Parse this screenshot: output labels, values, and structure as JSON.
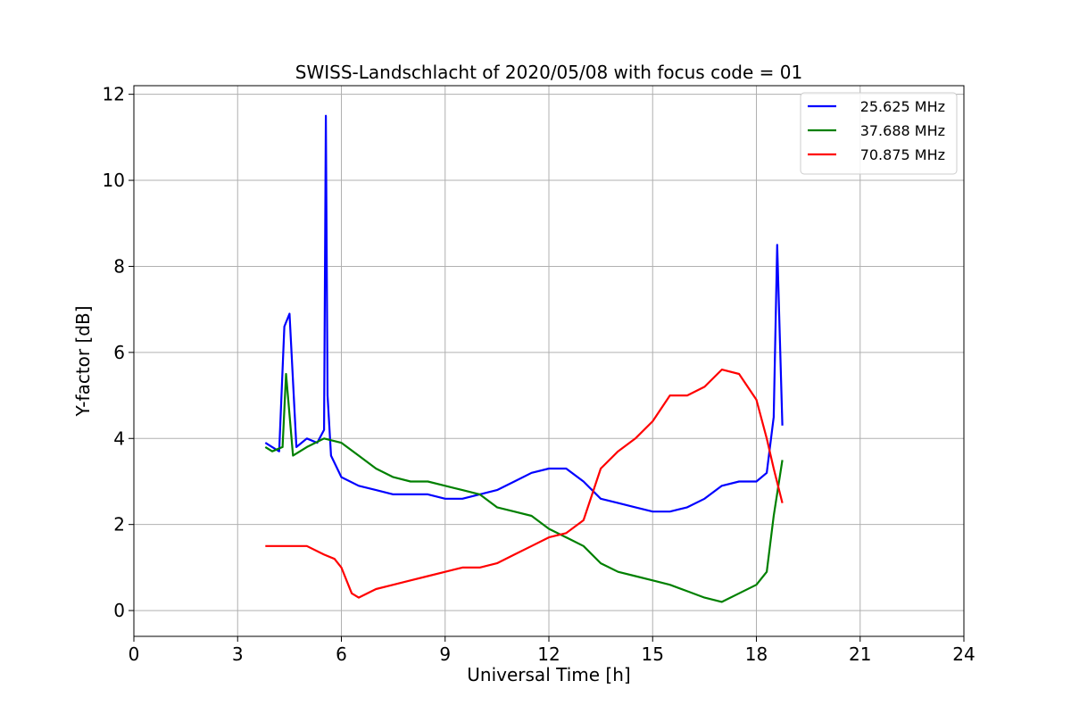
{
  "chart_data": {
    "type": "line",
    "title": "SWISS-Landschlacht of 2020/05/08 with focus code = 01",
    "xlabel": "Universal Time [h]",
    "ylabel": "Y-factor [dB]",
    "xlim": [
      0,
      24
    ],
    "ylim": [
      -0.6,
      12.2
    ],
    "xticks": [
      0,
      3,
      6,
      9,
      12,
      15,
      18,
      21,
      24
    ],
    "yticks": [
      0,
      2,
      4,
      6,
      8,
      10,
      12
    ],
    "grid": true,
    "legend_position": "top-right",
    "series": [
      {
        "name": "25.625 MHz",
        "color": "#0000ff",
        "x": [
          3.8,
          4.0,
          4.2,
          4.35,
          4.5,
          4.7,
          5.0,
          5.3,
          5.5,
          5.55,
          5.6,
          5.7,
          6.0,
          6.5,
          7.0,
          7.5,
          8.0,
          8.5,
          9.0,
          9.5,
          10.0,
          10.5,
          11.0,
          11.5,
          12.0,
          12.5,
          13.0,
          13.5,
          14.0,
          14.5,
          15.0,
          15.5,
          16.0,
          16.5,
          17.0,
          17.5,
          18.0,
          18.3,
          18.5,
          18.6,
          18.75
        ],
        "y": [
          3.9,
          3.8,
          3.7,
          6.6,
          6.9,
          3.8,
          4.0,
          3.9,
          4.2,
          11.5,
          5.0,
          3.6,
          3.1,
          2.9,
          2.8,
          2.7,
          2.7,
          2.7,
          2.6,
          2.6,
          2.7,
          2.8,
          3.0,
          3.2,
          3.3,
          3.3,
          3.0,
          2.6,
          2.5,
          2.4,
          2.3,
          2.3,
          2.4,
          2.6,
          2.9,
          3.0,
          3.0,
          3.2,
          4.5,
          8.5,
          4.3
        ]
      },
      {
        "name": "37.688 MHz",
        "color": "#008000",
        "x": [
          3.8,
          4.0,
          4.3,
          4.4,
          4.6,
          5.0,
          5.5,
          6.0,
          6.5,
          7.0,
          7.5,
          8.0,
          8.5,
          9.0,
          9.5,
          10.0,
          10.5,
          11.0,
          11.5,
          12.0,
          12.5,
          13.0,
          13.5,
          14.0,
          14.5,
          15.0,
          15.5,
          16.0,
          16.5,
          17.0,
          17.5,
          18.0,
          18.3,
          18.5,
          18.75
        ],
        "y": [
          3.8,
          3.7,
          3.8,
          5.5,
          3.6,
          3.8,
          4.0,
          3.9,
          3.6,
          3.3,
          3.1,
          3.0,
          3.0,
          2.9,
          2.8,
          2.7,
          2.4,
          2.3,
          2.2,
          1.9,
          1.7,
          1.5,
          1.1,
          0.9,
          0.8,
          0.7,
          0.6,
          0.45,
          0.3,
          0.2,
          0.4,
          0.6,
          0.9,
          2.2,
          3.5
        ]
      },
      {
        "name": "70.875 MHz",
        "color": "#ff0000",
        "x": [
          3.8,
          4.5,
          5.0,
          5.5,
          5.8,
          6.0,
          6.3,
          6.5,
          7.0,
          7.5,
          8.0,
          8.5,
          9.0,
          9.5,
          10.0,
          10.5,
          11.0,
          11.5,
          12.0,
          12.5,
          13.0,
          13.5,
          14.0,
          14.5,
          15.0,
          15.5,
          16.0,
          16.5,
          17.0,
          17.5,
          18.0,
          18.3,
          18.5,
          18.75
        ],
        "y": [
          1.5,
          1.5,
          1.5,
          1.3,
          1.2,
          1.0,
          0.4,
          0.3,
          0.5,
          0.6,
          0.7,
          0.8,
          0.9,
          1.0,
          1.0,
          1.1,
          1.3,
          1.5,
          1.7,
          1.8,
          2.1,
          3.3,
          3.7,
          4.0,
          4.4,
          5.0,
          5.0,
          5.2,
          5.6,
          5.5,
          4.9,
          4.0,
          3.3,
          2.5
        ]
      }
    ]
  }
}
